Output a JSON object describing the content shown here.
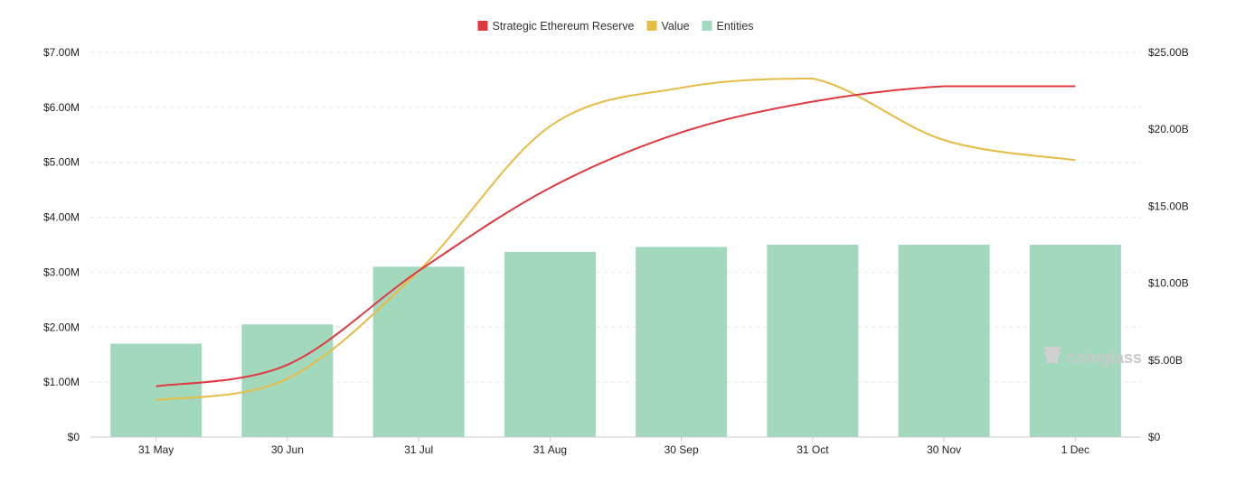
{
  "chart_data": {
    "type": "bar",
    "categories": [
      "31 May",
      "30 Jun",
      "31 Jul",
      "31 Aug",
      "30 Sep",
      "31 Oct",
      "30 Nov",
      "1 Dec"
    ],
    "series": [
      {
        "name": "Entities",
        "kind": "bar",
        "axis": "left",
        "color": "#a2d9bd",
        "values": [
          1700000,
          2050000,
          3100000,
          3370000,
          3460000,
          3500000,
          3500000,
          3500000
        ]
      },
      {
        "name": "Strategic Ethereum Reserve",
        "kind": "line",
        "axis": "right",
        "color": "#e0383f",
        "values": [
          3.3,
          4.7,
          10.8,
          16.2,
          19.8,
          21.8,
          22.8,
          22.8
        ]
      },
      {
        "name": "Value",
        "kind": "line",
        "axis": "right",
        "color": "#e6bc45",
        "values": [
          2.4,
          3.8,
          10.8,
          20.2,
          22.7,
          23.3,
          19.3,
          18.0
        ]
      }
    ],
    "left_axis": {
      "ticks": [
        "$0",
        "$1.00M",
        "$2.00M",
        "$3.00M",
        "$4.00M",
        "$5.00M",
        "$6.00M",
        "$7.00M"
      ],
      "ylim": [
        0,
        7000000
      ]
    },
    "right_axis": {
      "ticks": [
        "$0",
        "$5.00B",
        "$10.00B",
        "$15.00B",
        "$20.00B",
        "$25.00B"
      ],
      "ylim": [
        0,
        25
      ]
    },
    "legend_position": "top-center",
    "grid": "horizontal-dashed",
    "watermark": "coinglass"
  }
}
